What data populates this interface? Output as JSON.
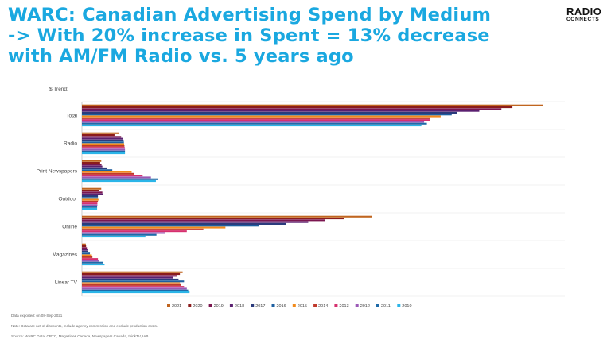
{
  "header": {
    "title_lines": [
      "WARC: Canadian Advertising Spend by Medium",
      "-> With 20% increase in Spent = 13% decrease",
      "with AM/FM Radio vs. 5 years ago"
    ],
    "logo_line1": "RADIO",
    "logo_line2": "CONNECTS"
  },
  "chart_data": {
    "type": "bar",
    "orientation": "horizontal",
    "title": "",
    "ylabel_note": "$ Trend:",
    "categories": [
      "Total",
      "Radio",
      "Print Newspapers",
      "Outdoor",
      "Online",
      "Magazines",
      "Linear TV"
    ],
    "series": [
      {
        "name": "2021",
        "color": "#c0651f",
        "values": [
          16700,
          1340,
          700,
          700,
          10500,
          140,
          3650
        ]
      },
      {
        "name": "2020",
        "color": "#8b1c1c",
        "values": [
          15600,
          1180,
          660,
          620,
          9500,
          150,
          3550
        ]
      },
      {
        "name": "2019",
        "color": "#7b1650",
        "values": [
          15200,
          1420,
          710,
          740,
          8800,
          180,
          3450
        ]
      },
      {
        "name": "2018",
        "color": "#5a2070",
        "values": [
          14400,
          1480,
          740,
          760,
          8200,
          200,
          3300
        ]
      },
      {
        "name": "2017",
        "color": "#2b3b7c",
        "values": [
          13600,
          1510,
          920,
          580,
          7400,
          230,
          3500
        ]
      },
      {
        "name": "2016",
        "color": "#1d5fa0",
        "values": [
          13400,
          1520,
          1100,
          580,
          6400,
          290,
          3700
        ]
      },
      {
        "name": "2015",
        "color": "#f28a1a",
        "values": [
          13000,
          1530,
          1800,
          600,
          5200,
          360,
          3550
        ]
      },
      {
        "name": "2014",
        "color": "#c0392b",
        "values": [
          12600,
          1540,
          1900,
          580,
          4400,
          380,
          3600
        ]
      },
      {
        "name": "2013",
        "color": "#d6306e",
        "values": [
          12600,
          1550,
          2200,
          560,
          3800,
          580,
          3700
        ]
      },
      {
        "name": "2012",
        "color": "#9b59b6",
        "values": [
          12400,
          1560,
          2500,
          560,
          3000,
          620,
          3800
        ]
      },
      {
        "name": "2011",
        "color": "#1e6aa8",
        "values": [
          12500,
          1560,
          2750,
          550,
          2700,
          750,
          3850
        ]
      },
      {
        "name": "2010",
        "color": "#2bb5e8",
        "values": [
          12300,
          1560,
          2680,
          550,
          2300,
          820,
          3900
        ]
      }
    ],
    "legend_position": "bottom",
    "grid": false
  },
  "footer": {
    "exported": "Data exported: on 08-Sep-2021",
    "note": "Note: Data are net of discounts, include agency commission and exclude production costs.",
    "source": "Source: WARC Data, CRTC, Magazines Canada, Newspapers Canada, thinkTV, IAB"
  }
}
